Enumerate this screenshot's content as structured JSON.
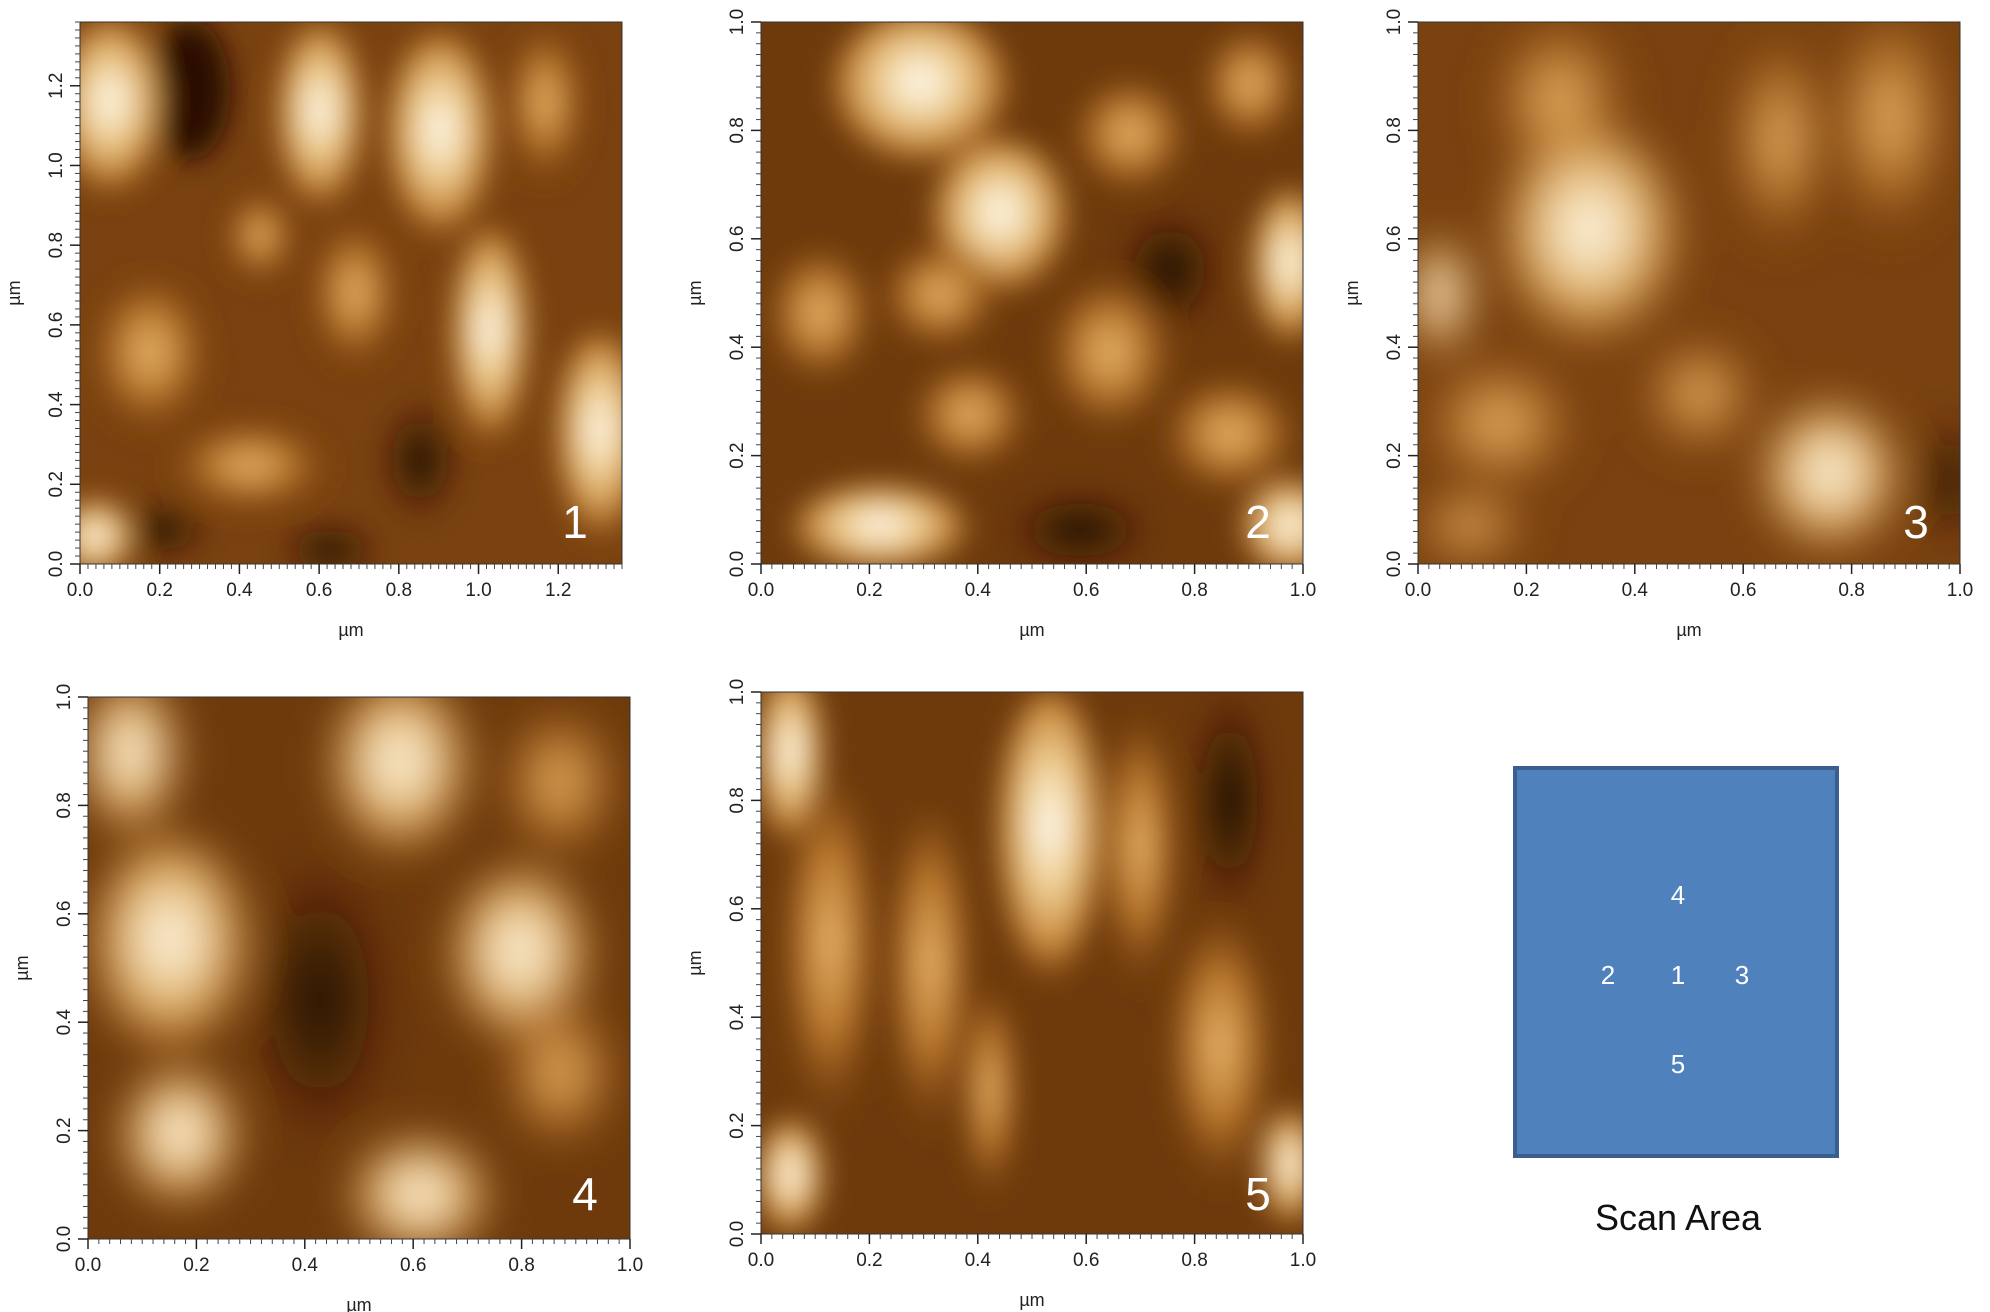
{
  "colors": {
    "afm_dark": "#2a0c00",
    "afm_mid": "#9a5a14",
    "afm_light": "#ffffff",
    "scan_area_fill": "#4f81bd",
    "scan_area_border": "#3a5f8f"
  },
  "panels": [
    {
      "id": "1",
      "label": "1",
      "x_unit": "µm",
      "y_unit": "µm",
      "x_ticks": [
        "0.0",
        "0.2",
        "0.4",
        "0.6",
        "0.8",
        "1.0",
        "1.2"
      ],
      "y_ticks": [
        "0.0",
        "0.2",
        "0.4",
        "0.6",
        "0.8",
        "1.0",
        "1.2"
      ],
      "range": [
        0,
        1.36
      ]
    },
    {
      "id": "2",
      "label": "2",
      "x_unit": "µm",
      "y_unit": "µm",
      "x_ticks": [
        "0.0",
        "0.2",
        "0.4",
        "0.6",
        "0.8",
        "1.0"
      ],
      "y_ticks": [
        "0.0",
        "0.2",
        "0.4",
        "0.6",
        "0.8",
        "1.0"
      ],
      "range": [
        0,
        1.0
      ]
    },
    {
      "id": "3",
      "label": "3",
      "x_unit": "µm",
      "y_unit": "µm",
      "x_ticks": [
        "0.0",
        "0.2",
        "0.4",
        "0.6",
        "0.8",
        "1.0"
      ],
      "y_ticks": [
        "0.0",
        "0.2",
        "0.4",
        "0.6",
        "0.8",
        "1.0"
      ],
      "range": [
        0,
        1.0
      ]
    },
    {
      "id": "4",
      "label": "4",
      "x_unit": "µm",
      "y_unit": "µm",
      "x_ticks": [
        "0.0",
        "0.2",
        "0.4",
        "0.6",
        "0.8",
        "1.0"
      ],
      "y_ticks": [
        "0.0",
        "0.2",
        "0.4",
        "0.6",
        "0.8",
        "1.0"
      ],
      "range": [
        0,
        1.0
      ]
    },
    {
      "id": "5",
      "label": "5",
      "x_unit": "µm",
      "y_unit": "µm",
      "x_ticks": [
        "0.0",
        "0.2",
        "0.4",
        "0.6",
        "0.8",
        "1.0"
      ],
      "y_ticks": [
        "0.0",
        "0.2",
        "0.4",
        "0.6",
        "0.8",
        "1.0"
      ],
      "range": [
        0,
        1.0
      ]
    }
  ],
  "scan_area": {
    "caption": "Scan Area",
    "positions": [
      "4",
      "2",
      "1",
      "3",
      "5"
    ]
  }
}
